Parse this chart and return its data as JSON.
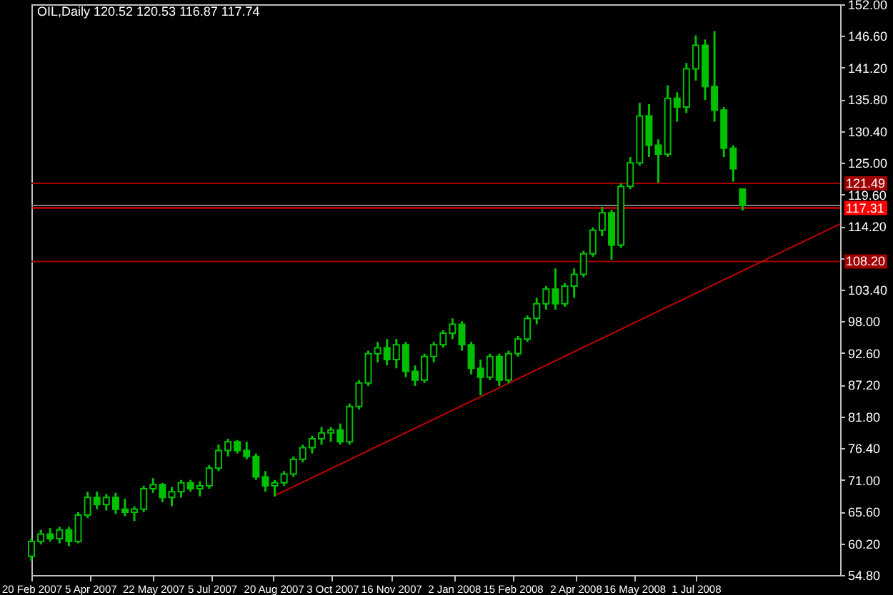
{
  "chart_data": {
    "type": "candlestick",
    "title": "OIL,Daily  120.52 120.53 116.87 117.74",
    "color": "#00c000",
    "x": [
      "2007-02-20",
      "2007-02-27",
      "2007-03-06",
      "2007-03-13",
      "2007-03-20",
      "2007-03-27",
      "2007-04-03",
      "2007-04-10",
      "2007-04-17",
      "2007-04-24",
      "2007-05-01",
      "2007-05-08",
      "2007-05-15",
      "2007-05-22",
      "2007-05-29",
      "2007-06-05",
      "2007-06-12",
      "2007-06-19",
      "2007-06-26",
      "2007-07-03",
      "2007-07-10",
      "2007-07-17",
      "2007-07-24",
      "2007-07-31",
      "2007-08-07",
      "2007-08-14",
      "2007-08-21",
      "2007-08-28",
      "2007-09-04",
      "2007-09-11",
      "2007-09-18",
      "2007-09-25",
      "2007-10-02",
      "2007-10-09",
      "2007-10-16",
      "2007-10-23",
      "2007-10-30",
      "2007-11-06",
      "2007-11-13",
      "2007-11-20",
      "2007-11-27",
      "2007-12-04",
      "2007-12-11",
      "2007-12-18",
      "2007-12-25",
      "2008-01-01",
      "2008-01-08",
      "2008-01-15",
      "2008-01-22",
      "2008-01-29",
      "2008-02-05",
      "2008-02-12",
      "2008-02-19",
      "2008-02-26",
      "2008-03-04",
      "2008-03-11",
      "2008-03-18",
      "2008-03-25",
      "2008-04-01",
      "2008-04-08",
      "2008-04-15",
      "2008-04-22",
      "2008-04-29",
      "2008-05-06",
      "2008-05-13",
      "2008-05-20",
      "2008-05-27",
      "2008-06-03",
      "2008-06-10",
      "2008-06-17",
      "2008-06-24",
      "2008-07-01",
      "2008-07-08",
      "2008-07-15",
      "2008-07-22",
      "2008-07-29",
      "2008-08-05"
    ],
    "ohlc": [
      [
        58.0,
        61.0,
        57.2,
        60.5
      ],
      [
        60.5,
        62.5,
        60.0,
        61.8
      ],
      [
        61.8,
        62.8,
        60.5,
        61.0
      ],
      [
        61.0,
        63.0,
        60.2,
        62.5
      ],
      [
        62.5,
        63.0,
        59.7,
        60.5
      ],
      [
        60.5,
        65.5,
        60.2,
        65.0
      ],
      [
        65.0,
        69.0,
        64.5,
        68.0
      ],
      [
        68.0,
        69.0,
        66.0,
        66.8
      ],
      [
        66.8,
        68.6,
        65.8,
        68.0
      ],
      [
        68.0,
        68.8,
        65.2,
        66.0
      ],
      [
        66.0,
        67.8,
        64.8,
        65.5
      ],
      [
        65.5,
        66.5,
        64.0,
        66.0
      ],
      [
        66.0,
        70.0,
        65.5,
        69.5
      ],
      [
        69.5,
        71.3,
        68.8,
        70.2
      ],
      [
        70.2,
        70.5,
        67.2,
        68.0
      ],
      [
        68.0,
        69.8,
        66.5,
        69.0
      ],
      [
        69.0,
        71.0,
        68.0,
        70.5
      ],
      [
        70.5,
        71.0,
        69.0,
        69.5
      ],
      [
        69.5,
        70.8,
        68.2,
        70.0
      ],
      [
        70.0,
        73.5,
        69.5,
        73.0
      ],
      [
        73.0,
        77.0,
        72.5,
        76.0
      ],
      [
        76.0,
        78.0,
        75.0,
        77.5
      ],
      [
        77.5,
        77.8,
        75.5,
        76.0
      ],
      [
        76.0,
        77.5,
        74.5,
        75.0
      ],
      [
        75.0,
        75.5,
        71.0,
        71.5
      ],
      [
        71.5,
        72.5,
        69.0,
        70.0
      ],
      [
        70.0,
        71.0,
        68.2,
        70.5
      ],
      [
        70.5,
        72.5,
        70.0,
        72.0
      ],
      [
        72.0,
        75.0,
        71.5,
        74.5
      ],
      [
        74.5,
        77.0,
        74.0,
        76.5
      ],
      [
        76.5,
        78.5,
        75.5,
        78.0
      ],
      [
        78.0,
        80.0,
        77.0,
        79.0
      ],
      [
        79.0,
        80.0,
        77.5,
        79.5
      ],
      [
        79.5,
        80.6,
        77.0,
        77.5
      ],
      [
        77.5,
        84.0,
        77.0,
        83.5
      ],
      [
        83.5,
        88.0,
        83.0,
        87.5
      ],
      [
        87.5,
        93.0,
        87.0,
        92.5
      ],
      [
        92.5,
        94.5,
        91.0,
        93.5
      ],
      [
        93.5,
        95.0,
        90.5,
        91.5
      ],
      [
        91.5,
        95.0,
        90.0,
        94.0
      ],
      [
        94.0,
        94.5,
        88.5,
        89.5
      ],
      [
        89.5,
        90.5,
        87.0,
        88.0
      ],
      [
        88.0,
        92.5,
        87.5,
        92.0
      ],
      [
        92.0,
        94.5,
        91.0,
        94.0
      ],
      [
        94.0,
        96.5,
        93.5,
        96.0
      ],
      [
        96.0,
        98.5,
        95.0,
        97.5
      ],
      [
        97.5,
        98.0,
        93.0,
        94.0
      ],
      [
        94.0,
        94.5,
        89.0,
        90.0
      ],
      [
        90.0,
        91.5,
        85.4,
        88.5
      ],
      [
        88.5,
        92.5,
        88.0,
        92.0
      ],
      [
        92.0,
        92.5,
        87.0,
        88.0
      ],
      [
        88.0,
        93.0,
        87.5,
        92.5
      ],
      [
        92.5,
        95.5,
        92.0,
        95.0
      ],
      [
        95.0,
        99.0,
        94.5,
        98.5
      ],
      [
        98.5,
        102.0,
        97.5,
        101.0
      ],
      [
        101.0,
        104.0,
        100.0,
        103.5
      ],
      [
        103.5,
        107.0,
        100.0,
        101.0
      ],
      [
        101.0,
        104.5,
        100.5,
        104.0
      ],
      [
        104.0,
        107.0,
        102.0,
        106.0
      ],
      [
        106.0,
        110.0,
        105.5,
        109.5
      ],
      [
        109.5,
        114.0,
        109.0,
        113.5
      ],
      [
        113.5,
        117.5,
        112.5,
        116.5
      ],
      [
        116.5,
        117.0,
        108.5,
        111.0
      ],
      [
        111.0,
        121.5,
        110.5,
        121.0
      ],
      [
        121.0,
        126.0,
        120.5,
        125.0
      ],
      [
        125.0,
        135.2,
        124.5,
        133.0
      ],
      [
        133.0,
        135.0,
        126.0,
        128.0
      ],
      [
        128.0,
        129.0,
        121.6,
        126.5
      ],
      [
        126.5,
        138.2,
        126.0,
        136.0
      ],
      [
        136.0,
        137.0,
        132.0,
        134.5
      ],
      [
        134.5,
        142.0,
        133.5,
        141.0
      ],
      [
        141.0,
        146.7,
        139.0,
        145.0
      ],
      [
        145.0,
        146.0,
        135.7,
        138.0
      ],
      [
        138.0,
        147.4,
        132.0,
        134.0
      ],
      [
        134.0,
        134.5,
        126.0,
        127.5
      ],
      [
        127.5,
        128.0,
        121.8,
        124.0
      ],
      [
        120.52,
        120.53,
        116.87,
        117.74
      ]
    ],
    "series": [
      {
        "type": "line",
        "x": [
          "2007-08-20",
          "2008-10-17"
        ],
        "values": [
          68.2,
          114.6
        ],
        "color": "#c00000"
      }
    ],
    "xlim": [
      "2007-02-20",
      "2008-10-17"
    ],
    "xticks": [
      {
        "value": "2007-02-20",
        "label": "20 Feb 2007"
      },
      {
        "value": "2007-04-05",
        "label": "5 Apr 2007"
      },
      {
        "value": "2007-05-22",
        "label": "22 May 2007"
      },
      {
        "value": "2007-07-05",
        "label": "5 Jul 2007"
      },
      {
        "value": "2007-08-20",
        "label": "20 Aug 2007"
      },
      {
        "value": "2007-10-03",
        "label": "3 Oct 2007"
      },
      {
        "value": "2007-11-16",
        "label": "16 Nov 2007"
      },
      {
        "value": "2008-01-02",
        "label": "2 Jan 2008"
      },
      {
        "value": "2008-02-15",
        "label": "15 Feb 2008"
      },
      {
        "value": "2008-04-02",
        "label": "2 Apr 2008"
      },
      {
        "value": "2008-05-16",
        "label": "16 May 2008"
      },
      {
        "value": "2008-07-01",
        "label": "1 Jul 2008"
      }
    ],
    "ylim": [
      54.8,
      152
    ],
    "yticks": [
      {
        "value": 54.8,
        "label": "54.80"
      },
      {
        "value": 60.2,
        "label": "60.20"
      },
      {
        "value": 65.6,
        "label": "65.60"
      },
      {
        "value": 71,
        "label": "71.00"
      },
      {
        "value": 76.4,
        "label": "76.40"
      },
      {
        "value": 81.8,
        "label": "81.80"
      },
      {
        "value": 87.2,
        "label": "87.20"
      },
      {
        "value": 92.6,
        "label": "92.60"
      },
      {
        "value": 98,
        "label": "98.00"
      },
      {
        "value": 103.4,
        "label": "103.40"
      },
      {
        "value": 108.8,
        "label": null
      },
      {
        "value": 114.2,
        "label": "114.20"
      },
      {
        "value": 119.6,
        "label": "119.60"
      },
      {
        "value": 125,
        "label": "125.00"
      },
      {
        "value": 130.4,
        "label": "130.40"
      },
      {
        "value": 135.8,
        "label": "135.80"
      },
      {
        "value": 141.2,
        "label": "141.20"
      },
      {
        "value": 146.6,
        "label": "146.60"
      },
      {
        "value": 152,
        "label": "152.00"
      }
    ],
    "ref_lines": [
      {
        "axis": "y",
        "value": 121.49,
        "label": "121.49",
        "color": "#a00000"
      },
      {
        "axis": "y",
        "value": 117.74,
        "label": null,
        "color": "#808080"
      },
      {
        "axis": "y",
        "value": 117.31,
        "label": "117.31",
        "color": "#ff0000"
      },
      {
        "axis": "y",
        "value": 108.2,
        "label": "108.20",
        "color": "#a00000"
      }
    ],
    "grid": false
  }
}
